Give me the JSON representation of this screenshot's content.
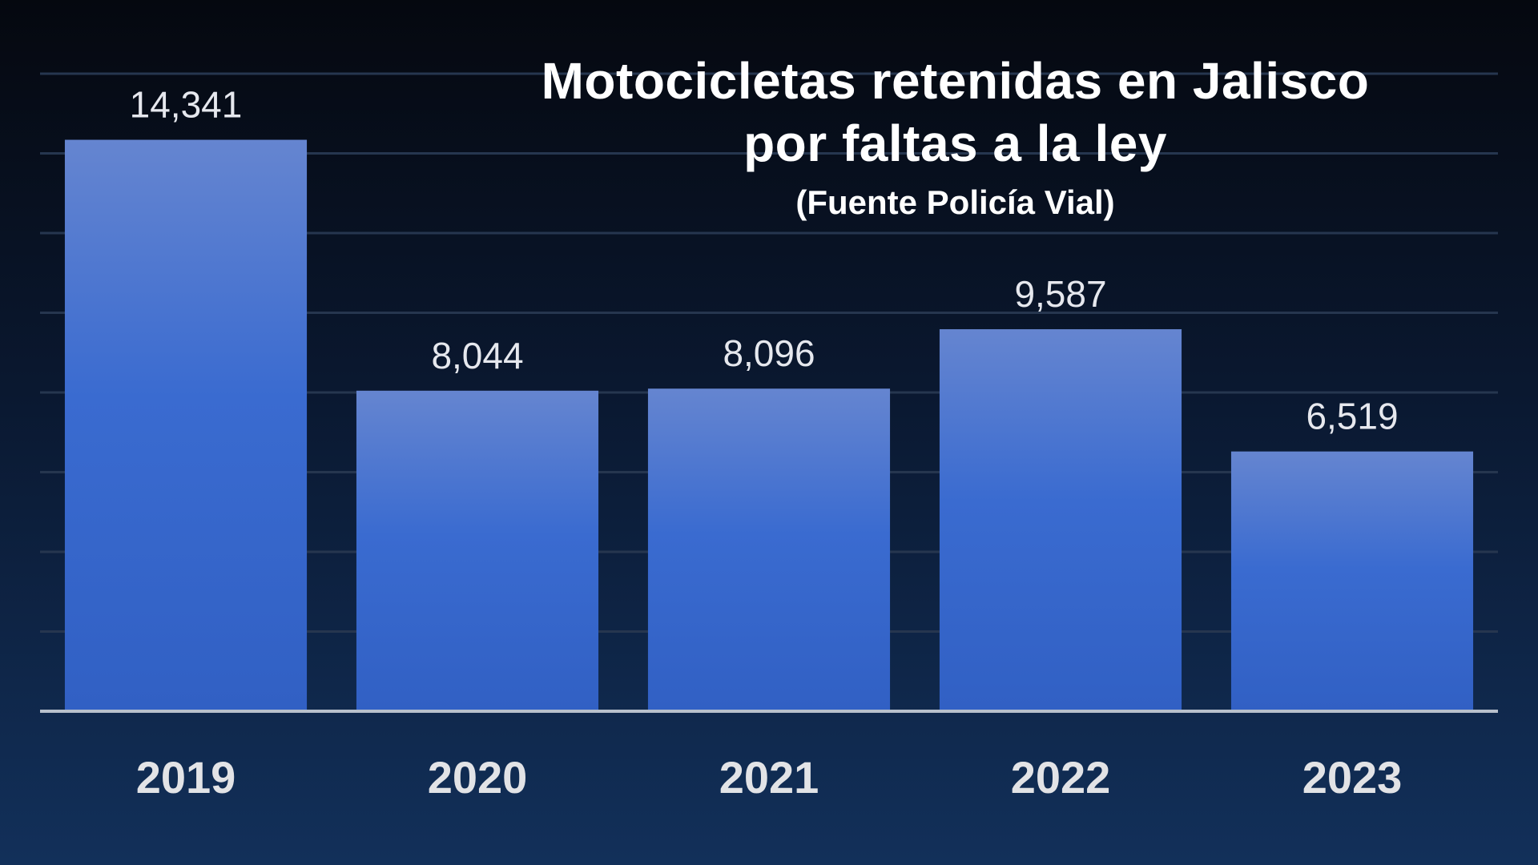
{
  "chart_data": {
    "type": "bar",
    "title_line1": "Motocicletas retenidas en Jalisco",
    "title_line2": "por faltas a la ley",
    "subtitle": "(Fuente Policía Vial)",
    "categories": [
      "2019",
      "2020",
      "2021",
      "2022",
      "2023"
    ],
    "values": [
      14341,
      8044,
      8096,
      9587,
      6519
    ],
    "value_labels": [
      "14,341",
      "8,044",
      "8,096",
      "9,587",
      "6,519"
    ],
    "xlabel": "",
    "ylabel": "",
    "ylim": [
      0,
      16000
    ],
    "grid": true,
    "legend": "none",
    "colors": {
      "bar_top": "#6585d0",
      "bar_bottom": "#3160c4",
      "gridline": "#26364f",
      "baseline": "#b8c0cc"
    }
  }
}
